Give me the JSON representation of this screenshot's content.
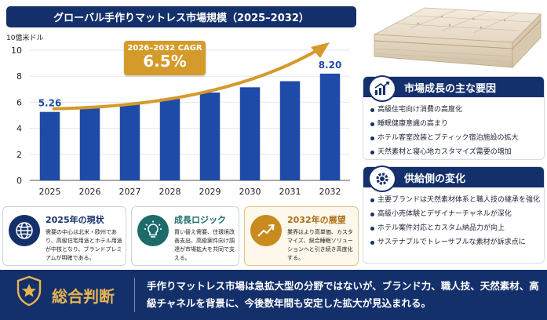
{
  "title": "グローバル手作りマットレス市場規模（2025–2032）",
  "unit_label": "10億米ドル",
  "cagr": {
    "label": "2026–2032 CAGR",
    "value": "6.5%"
  },
  "chart_data": {
    "type": "bar",
    "categories": [
      "2025",
      "2026",
      "2027",
      "2028",
      "2029",
      "2030",
      "2031",
      "2032"
    ],
    "values": [
      5.26,
      5.6,
      5.85,
      6.28,
      6.75,
      7.15,
      7.62,
      8.2
    ],
    "value_labels": {
      "2025": "5.26",
      "2032": "8.20"
    },
    "ylim": [
      0,
      10
    ],
    "yticks": [
      0,
      2,
      4,
      6,
      8,
      10
    ],
    "ylabel": "10億米ドル",
    "grid": true,
    "bar_color": "#1e4aa8",
    "arrow_color": "#d49a2a"
  },
  "growth": {
    "title": "市場成長の主な要因",
    "items": [
      "高級住宅向け消費の高度化",
      "睡眠健康意識の高まり",
      "ホテル客室改装とブティック宿泊施設の拡大",
      "天然素材と寝心地カスタマイズ需要の増加"
    ]
  },
  "supply": {
    "title": "供給側の変化",
    "items": [
      "主要ブランドは天然素材体系と職人技の継承を強化",
      "高級小売体験とデザイナーチャネルが深化",
      "ホテル案件対応とカスタム納品力が向上",
      "サステナブルでトレーサブルな素材が訴求点に"
    ]
  },
  "boxes": [
    {
      "title": "2025年の現状",
      "body": "需要の中心は北米・欧州であり、高級住宅用途とホテル用途が中核となり、ブランドプレミアムが明確である。",
      "accent": "#14306b"
    },
    {
      "title": "成長ロジック",
      "body": "買い替え需要、住環境改善支出、高級案件向け調達が市場拡大を共同で支える。",
      "accent": "#1d6b6b"
    },
    {
      "title": "2032年の展望",
      "body": "業界はより高単価、カスタマイズ、総合睡眠ソリューションへと引き続き高度化する。",
      "accent": "#c98a1e"
    }
  ],
  "summary": {
    "label": "総合判断",
    "text": "手作りマットレス市場は急拡大型の分野ではないが、ブランド力、職人技、天然素材、高級チャネルを背景に、今後数年間も安定した拡大が見込まれる。"
  }
}
